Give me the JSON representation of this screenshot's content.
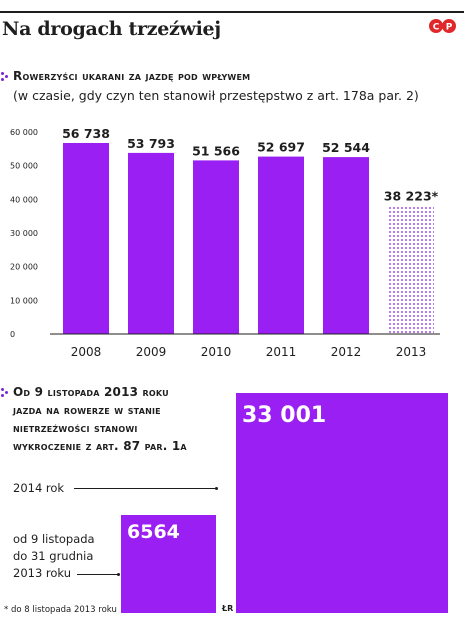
{
  "title": "Na drogach trzeźwiej",
  "logo": "CP",
  "colors": {
    "bar": "#9a1ff2",
    "dots": "#7a25d8",
    "text": "#1e1e1e"
  },
  "section1": {
    "heading": "Rowerzyści ukarani za jazdę pod wpływem",
    "subheading": "(w czasie, gdy czyn ten stanowił przestępstwo z art. 178a par. 2)"
  },
  "section2": {
    "heading_lines": [
      "Od 9 listopada 2013 roku",
      "jazda na rowerze w stanie",
      "nietrzeźwości stanowi",
      "wykroczenie z art. 87 par. 1a"
    ],
    "big_label": "2014 rok",
    "big_value": "33 001",
    "small_label_lines": [
      "od 9 listopada",
      "do 31 grudnia",
      "2013 roku"
    ],
    "small_value": "6564"
  },
  "footnote": "* do 8 listopada 2013 roku",
  "credit": "ŁR",
  "chart_data": [
    {
      "type": "bar",
      "title": "Rowerzyści ukarani za jazdę pod wpływem",
      "subtitle": "(w czasie, gdy czyn ten stanowił przestępstwo z art. 178a par. 2)",
      "categories": [
        "2008",
        "2009",
        "2010",
        "2011",
        "2012",
        "2013"
      ],
      "values": [
        56738,
        53793,
        51566,
        52697,
        52544,
        38223
      ],
      "value_labels": [
        "56 738",
        "53 793",
        "51 566",
        "52 697",
        "52 544",
        "38 223*"
      ],
      "highlight": "2013 bar drawn with dotted pattern (partial year)",
      "yticks": [
        "0",
        "10 000",
        "20 000",
        "30 000",
        "40 000",
        "50 000",
        "60 000"
      ],
      "ylim": [
        0,
        60000
      ],
      "grid": false,
      "legend": "none"
    },
    {
      "type": "bar",
      "title": "Od 9 listopada 2013 roku jazda na rowerze w stanie nietrzeźwości stanowi wykroczenie z art. 87 par. 1a",
      "categories": [
        "od 9 listopada do 31 grudnia 2013 roku",
        "2014 rok"
      ],
      "values": [
        6564,
        33001
      ],
      "value_labels": [
        "6564",
        "33 001"
      ]
    }
  ]
}
